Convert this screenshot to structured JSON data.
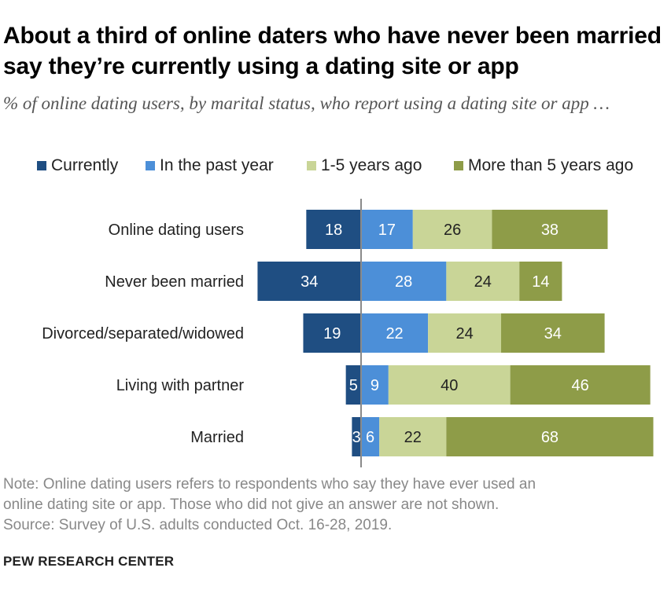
{
  "title": "About a third of online daters who have never been married say they’re currently using a dating site or app",
  "subtitle": "% of online dating users, by marital status, who report using a dating site or app …",
  "legend": [
    {
      "label": "Currently",
      "color": "#1f4e82"
    },
    {
      "label": "In the past year",
      "color": "#4c8fd8"
    },
    {
      "label": "1-5 years ago",
      "color": "#c9d597"
    },
    {
      "label": "More than 5 years ago",
      "color": "#8e9c48"
    }
  ],
  "chart_data": {
    "type": "bar",
    "orientation": "horizontal",
    "stacked": "diverging",
    "categories": [
      "Online dating users",
      "Never been married",
      "Divorced/separated/widowed",
      "Living with partner",
      "Married"
    ],
    "series": [
      {
        "name": "Currently",
        "values": [
          18,
          34,
          19,
          5,
          3
        ],
        "color": "#1f4e82"
      },
      {
        "name": "In the past year",
        "values": [
          17,
          28,
          22,
          9,
          6
        ],
        "color": "#4c8fd8"
      },
      {
        "name": "1-5 years ago",
        "values": [
          26,
          24,
          24,
          40,
          22
        ],
        "color": "#c9d597"
      },
      {
        "name": "More than 5 years ago",
        "values": [
          38,
          14,
          34,
          46,
          68
        ],
        "color": "#8e9c48"
      }
    ],
    "legend_position": "top"
  },
  "note": {
    "lines": [
      "Note: Online dating users refers to respondents who say they have ever used an",
      "online dating site or app. Those who did not give an answer are not shown.",
      "Source: Survey of U.S. adults conducted Oct. 16-28, 2019."
    ]
  },
  "credit": "PEW RESEARCH CENTER"
}
